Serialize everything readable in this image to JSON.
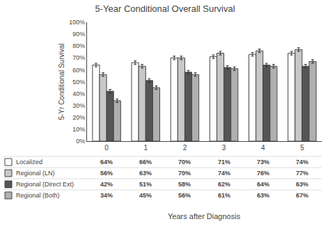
{
  "chart_data": {
    "type": "bar",
    "title": "5-Year Conditional Overall Survival",
    "xlabel": "Years after Diagnosis",
    "ylabel": "5-Yr Conditional Survival",
    "categories": [
      "0",
      "1",
      "2",
      "3",
      "4",
      "5"
    ],
    "series": [
      {
        "name": "Localized",
        "color": "white",
        "values": [
          64,
          66,
          70,
          71,
          73,
          74
        ],
        "value_labels": [
          "64%",
          "66%",
          "70%",
          "71%",
          "73%",
          "74%"
        ],
        "error": [
          1.5,
          1.5,
          1.5,
          1.5,
          1.5,
          1.5
        ]
      },
      {
        "name": "Regional (LN)",
        "color": "#c8c8c8",
        "values": [
          56,
          63,
          70,
          74,
          76,
          77
        ],
        "value_labels": [
          "56%",
          "63%",
          "70%",
          "74%",
          "76%",
          "77%"
        ],
        "error": [
          1.5,
          1.5,
          1.5,
          1.5,
          1.5,
          1.5
        ]
      },
      {
        "name": "Regional (Direct Ext)",
        "color": "#555555",
        "values": [
          42,
          51,
          58,
          62,
          64,
          63
        ],
        "value_labels": [
          "42%",
          "51%",
          "58%",
          "62%",
          "64%",
          "63%"
        ],
        "error": [
          1.5,
          1.5,
          1.5,
          1.5,
          1.5,
          1.5
        ]
      },
      {
        "name": "Regional (Both)",
        "color": "#b0b0b0",
        "values": [
          34,
          45,
          56,
          61,
          63,
          67
        ],
        "value_labels": [
          "34%",
          "45%",
          "56%",
          "61%",
          "63%",
          "67%"
        ],
        "error": [
          1.5,
          1.5,
          1.5,
          1.5,
          1.5,
          1.5
        ]
      }
    ],
    "ylim": [
      0,
      100
    ],
    "yticks": [
      {
        "value": 0,
        "label": "0%"
      },
      {
        "value": 10,
        "label": "10%"
      },
      {
        "value": 20,
        "label": "20%"
      },
      {
        "value": 30,
        "label": "30%"
      },
      {
        "value": 40,
        "label": "40%"
      },
      {
        "value": 50,
        "label": "50%"
      },
      {
        "value": 60,
        "label": "60%"
      },
      {
        "value": 70,
        "label": "70%"
      },
      {
        "value": 80,
        "label": "80%"
      },
      {
        "value": 90,
        "label": "90%"
      },
      {
        "value": 100,
        "label": "100%"
      }
    ],
    "grid": false
  }
}
